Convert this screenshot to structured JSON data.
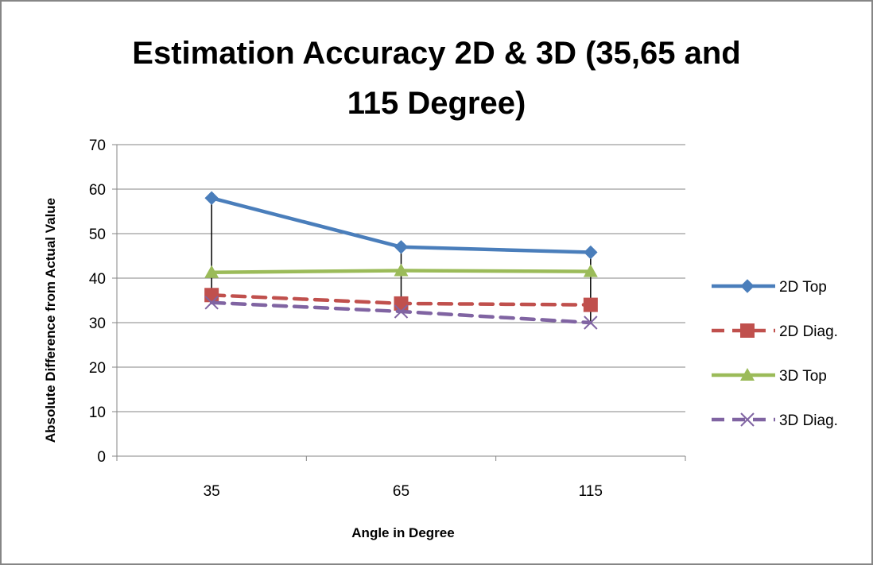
{
  "chart_data": {
    "type": "line",
    "title": "Estimation Accuracy 2D & 3D (35,65 and 115 Degree)",
    "title_lines": [
      "Estimation Accuracy 2D & 3D (35,65 and",
      "115 Degree)"
    ],
    "xlabel": "Angle in Degree",
    "ylabel": "Absolute Difference from Actual Value",
    "categories": [
      "35",
      "65",
      "115"
    ],
    "ylim": [
      0,
      70
    ],
    "yticks": [
      0,
      10,
      20,
      30,
      40,
      50,
      60,
      70
    ],
    "grid": true,
    "legend_position": "right",
    "high_low_lines": true,
    "series": [
      {
        "name": "2D Top",
        "values": [
          58,
          47,
          45.8
        ],
        "color": "#4a7ebb",
        "marker": "diamond",
        "dash": "solid"
      },
      {
        "name": "2D Diag.",
        "values": [
          36.2,
          34.3,
          34
        ],
        "color": "#c0504d",
        "marker": "square",
        "dash": "dashed"
      },
      {
        "name": "3D Top",
        "values": [
          41.3,
          41.7,
          41.5
        ],
        "color": "#9bbb59",
        "marker": "triangle",
        "dash": "solid"
      },
      {
        "name": "3D Diag.",
        "values": [
          34.5,
          32.5,
          30
        ],
        "color": "#8064a2",
        "marker": "x",
        "dash": "dashed"
      }
    ]
  }
}
